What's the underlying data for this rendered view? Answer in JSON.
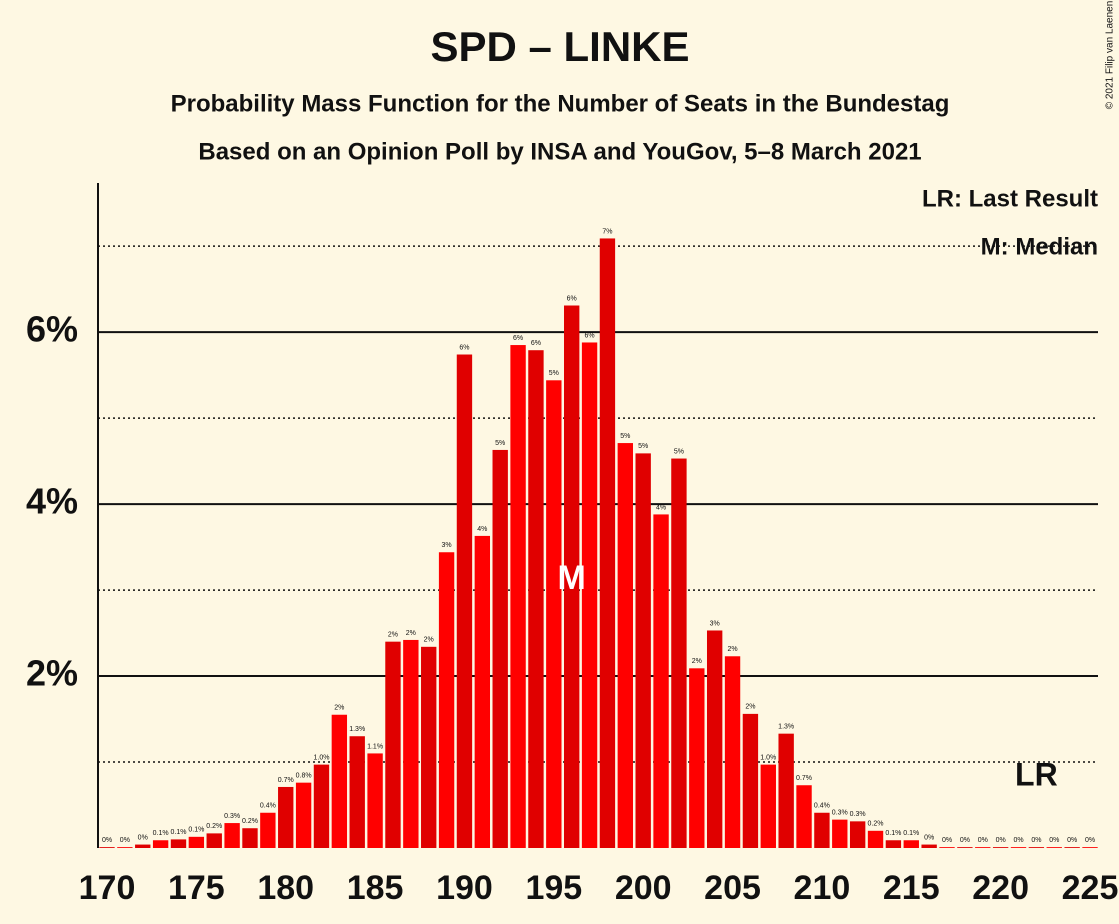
{
  "chart_data": {
    "type": "bar",
    "title": "SPD – LINKE",
    "subtitle": "Probability Mass Function for the Number of Seats in the Bundestag",
    "subtitle2": "Based on an Opinion Poll by INSA and YouGov, 5–8 March 2021",
    "copyright": "© 2021 Filip van Laenen",
    "legend": [
      "LR: Last Result",
      "M: Median"
    ],
    "x": [
      170,
      171,
      172,
      173,
      174,
      175,
      176,
      177,
      178,
      179,
      180,
      181,
      182,
      183,
      184,
      185,
      186,
      187,
      188,
      189,
      190,
      191,
      192,
      193,
      194,
      195,
      196,
      197,
      198,
      199,
      200,
      201,
      202,
      203,
      204,
      205,
      206,
      207,
      208,
      209,
      210,
      211,
      212,
      213,
      214,
      215,
      216,
      217,
      218,
      219,
      220,
      221,
      222,
      223,
      224,
      225
    ],
    "values": [
      0.01,
      0.01,
      0.04,
      0.09,
      0.1,
      0.13,
      0.17,
      0.29,
      0.23,
      0.41,
      0.71,
      0.76,
      0.97,
      1.55,
      1.3,
      1.1,
      2.4,
      2.42,
      2.34,
      3.44,
      5.74,
      3.63,
      4.63,
      5.85,
      5.79,
      5.44,
      6.31,
      5.88,
      7.09,
      4.71,
      4.59,
      3.88,
      4.53,
      2.09,
      2.53,
      2.23,
      1.56,
      0.97,
      1.33,
      0.73,
      0.41,
      0.33,
      0.31,
      0.2,
      0.09,
      0.09,
      0.04,
      0.01,
      0.01,
      0.01,
      0.01,
      0.01,
      0.01,
      0.01,
      0.01,
      0.01
    ],
    "value_labels": [
      "0%",
      "0%",
      "0%",
      "0.1%",
      "0.1%",
      "0.1%",
      "0.2%",
      "0.3%",
      "0.2%",
      "0.4%",
      "0.7%",
      "0.8%",
      "1.0%",
      "2%",
      "1.3%",
      "1.1%",
      "2%",
      "2%",
      "2%",
      "3%",
      "6%",
      "4%",
      "5%",
      "6%",
      "6%",
      "5%",
      "6%",
      "6%",
      "7%",
      "5%",
      "5%",
      "4%",
      "5%",
      "2%",
      "3%",
      "2%",
      "2%",
      "1.0%",
      "1.3%",
      "0.7%",
      "0.4%",
      "0.3%",
      "0.3%",
      "0.2%",
      "0.1%",
      "0.1%",
      "0%",
      "0%",
      "0%",
      "0%",
      "0%",
      "0%",
      "0%",
      "0%",
      "0%",
      "0%"
    ],
    "colors": [
      "#e00000",
      "#ff0000"
    ],
    "xlim": [
      170,
      225
    ],
    "xticks": [
      170,
      175,
      180,
      185,
      190,
      195,
      200,
      205,
      210,
      215,
      220,
      225
    ],
    "ylim": [
      0,
      7.7
    ],
    "yticks": [
      {
        "value": 2,
        "label": "2%"
      },
      {
        "value": 4,
        "label": "4%"
      },
      {
        "value": 6,
        "label": "6%"
      }
    ],
    "minor_yticks": [
      1,
      3,
      5,
      7
    ],
    "grid": true,
    "median": {
      "x": 196,
      "label": "M"
    },
    "last_result": {
      "x": 222,
      "label": "LR"
    }
  }
}
